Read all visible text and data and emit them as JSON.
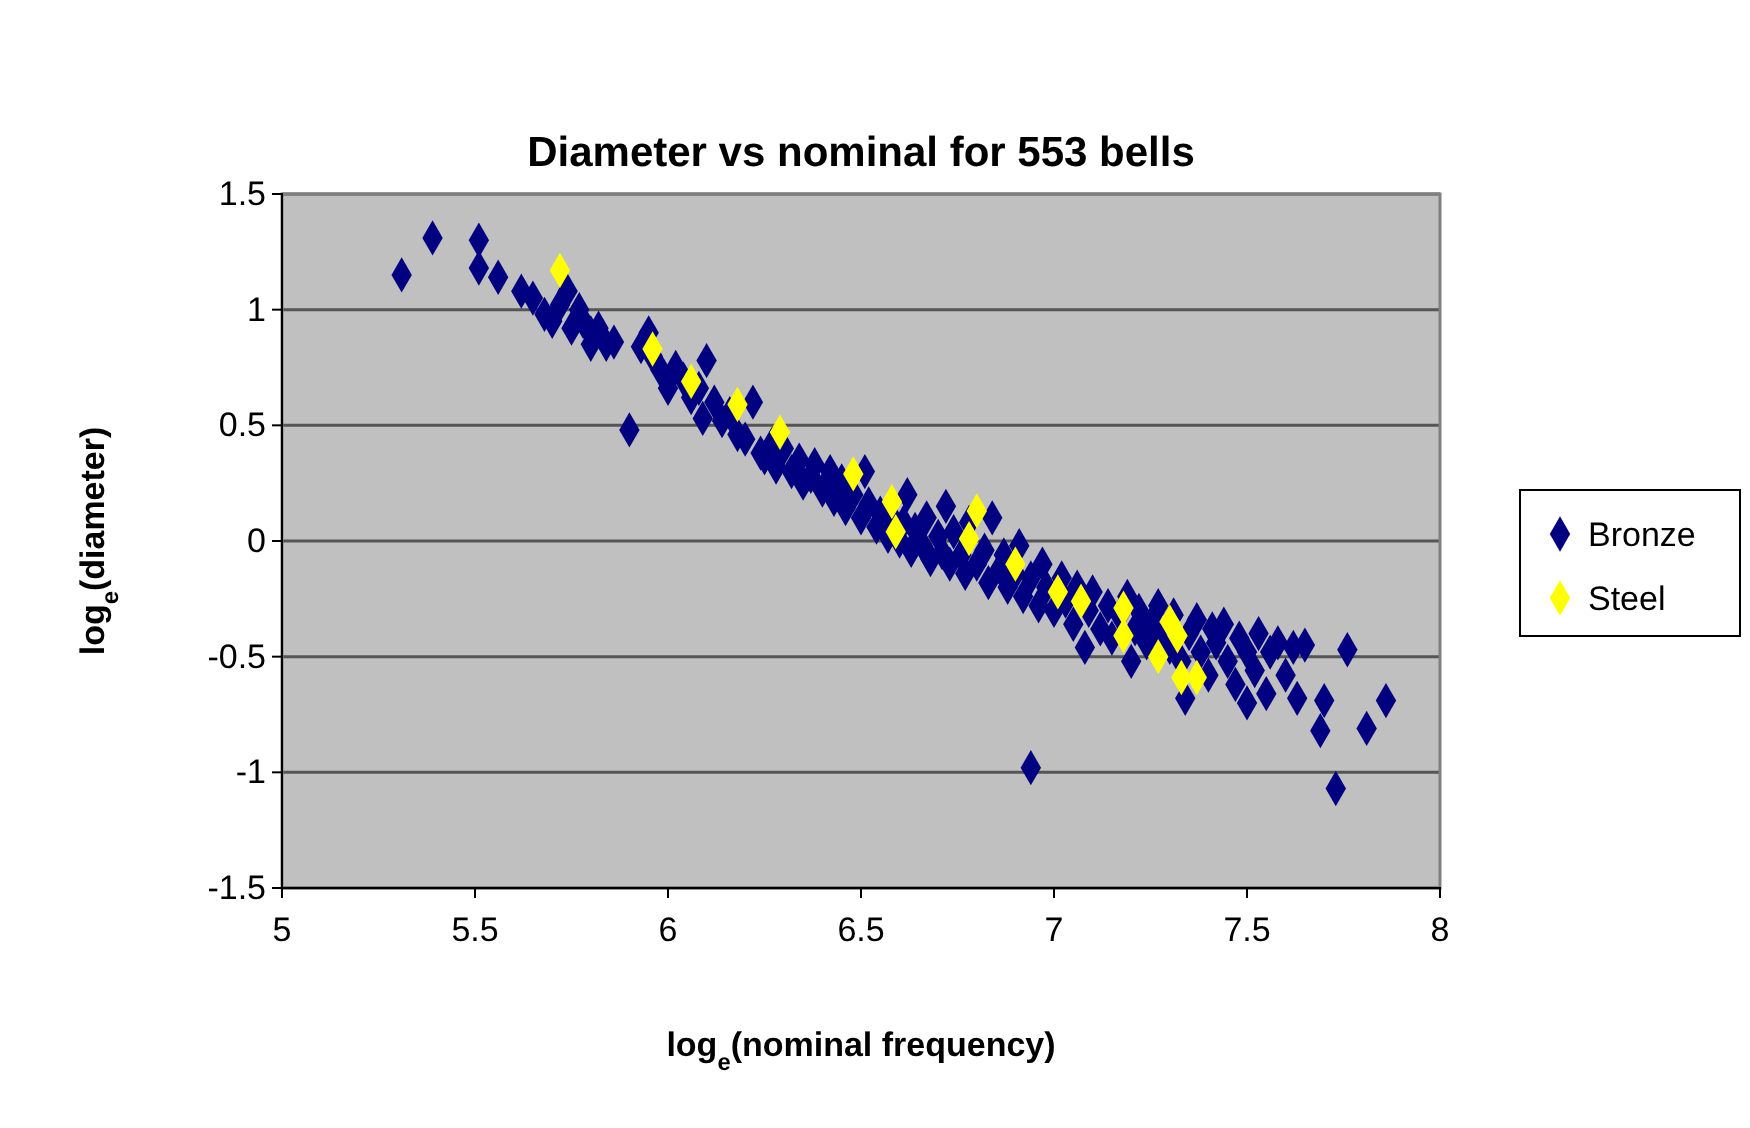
{
  "chart_data": {
    "type": "scatter",
    "title": "Diameter vs nominal for 553 bells",
    "xlabel": "log$_{e}$(nominal frequency)",
    "ylabel": "log$_{e}$(diameter)",
    "xlim": [
      5,
      8
    ],
    "xticks": [
      5,
      5.5,
      6,
      6.5,
      7,
      7.5,
      8
    ],
    "ylim": [
      -1.5,
      1.5
    ],
    "yticks": [
      -1.5,
      -1,
      -0.5,
      0,
      0.5,
      1,
      1.5
    ],
    "grid": "y",
    "legend": "right",
    "marker": "diamond",
    "series": [
      {
        "name": "Bronze",
        "color": "#000080",
        "x": [
          5.31,
          5.39,
          5.51,
          5.51,
          5.56,
          5.62,
          5.65,
          5.68,
          5.7,
          5.72,
          5.74,
          5.75,
          5.77,
          5.78,
          5.8,
          5.8,
          5.82,
          5.84,
          5.86,
          5.9,
          5.93,
          5.95,
          5.96,
          5.98,
          6.0,
          6.02,
          6.04,
          6.06,
          6.08,
          6.09,
          6.1,
          6.12,
          6.14,
          6.16,
          6.18,
          6.2,
          6.22,
          6.24,
          6.25,
          6.27,
          6.28,
          6.3,
          6.32,
          6.34,
          6.35,
          6.37,
          6.38,
          6.4,
          6.42,
          6.43,
          6.45,
          6.46,
          6.48,
          6.5,
          6.51,
          6.52,
          6.54,
          6.55,
          6.57,
          6.58,
          6.6,
          6.61,
          6.62,
          6.63,
          6.64,
          6.66,
          6.67,
          6.68,
          6.7,
          6.71,
          6.72,
          6.73,
          6.74,
          6.76,
          6.77,
          6.78,
          6.8,
          6.82,
          6.83,
          6.84,
          6.86,
          6.87,
          6.88,
          6.9,
          6.91,
          6.92,
          6.94,
          6.94,
          6.96,
          6.97,
          6.98,
          7.0,
          7.02,
          7.03,
          7.05,
          7.06,
          7.08,
          7.09,
          7.1,
          7.12,
          7.14,
          7.15,
          7.17,
          7.19,
          7.2,
          7.21,
          7.22,
          7.24,
          7.25,
          7.27,
          7.28,
          7.3,
          7.31,
          7.33,
          7.34,
          7.35,
          7.37,
          7.38,
          7.4,
          7.41,
          7.42,
          7.44,
          7.45,
          7.47,
          7.48,
          7.5,
          7.5,
          7.52,
          7.53,
          7.55,
          7.56,
          7.58,
          7.6,
          7.62,
          7.63,
          7.65,
          7.69,
          7.7,
          7.73,
          7.76,
          7.81,
          7.86
        ],
        "values": [
          1.15,
          1.31,
          1.3,
          1.18,
          1.14,
          1.08,
          1.05,
          0.98,
          0.95,
          1.02,
          1.08,
          0.92,
          1.0,
          0.95,
          0.85,
          0.9,
          0.92,
          0.85,
          0.86,
          0.48,
          0.84,
          0.9,
          0.8,
          0.74,
          0.66,
          0.75,
          0.7,
          0.62,
          0.66,
          0.53,
          0.78,
          0.6,
          0.52,
          0.55,
          0.46,
          0.44,
          0.6,
          0.38,
          0.36,
          0.42,
          0.32,
          0.4,
          0.3,
          0.35,
          0.25,
          0.28,
          0.33,
          0.22,
          0.3,
          0.18,
          0.26,
          0.14,
          0.2,
          0.1,
          0.3,
          0.16,
          0.06,
          0.12,
          0.02,
          0.1,
          0.0,
          0.08,
          0.2,
          -0.04,
          0.05,
          -0.02,
          0.1,
          -0.08,
          0.02,
          -0.05,
          0.15,
          -0.1,
          0.04,
          -0.06,
          -0.14,
          0.08,
          -0.1,
          -0.04,
          -0.18,
          0.1,
          -0.12,
          -0.06,
          -0.2,
          -0.14,
          -0.02,
          -0.24,
          -0.98,
          -0.16,
          -0.28,
          -0.1,
          -0.2,
          -0.3,
          -0.16,
          -0.26,
          -0.36,
          -0.2,
          -0.46,
          -0.3,
          -0.22,
          -0.38,
          -0.28,
          -0.42,
          -0.32,
          -0.24,
          -0.52,
          -0.38,
          -0.3,
          -0.44,
          -0.36,
          -0.28,
          -0.42,
          -0.46,
          -0.32,
          -0.52,
          -0.68,
          -0.4,
          -0.34,
          -0.48,
          -0.58,
          -0.38,
          -0.44,
          -0.36,
          -0.52,
          -0.62,
          -0.42,
          -0.7,
          -0.48,
          -0.56,
          -0.4,
          -0.66,
          -0.48,
          -0.44,
          -0.58,
          -0.46,
          -0.68,
          -0.45,
          -0.82,
          -0.69,
          -1.07,
          -0.47,
          -0.81,
          -0.69
        ]
      },
      {
        "name": "Steel",
        "color": "#ffff00",
        "x": [
          5.72,
          5.96,
          6.06,
          6.18,
          6.29,
          6.48,
          6.58,
          6.59,
          6.8,
          6.78,
          6.9,
          7.01,
          7.07,
          7.18,
          7.18,
          7.3,
          7.32,
          7.27,
          7.33,
          7.37
        ],
        "values": [
          1.17,
          0.83,
          0.69,
          0.59,
          0.47,
          0.29,
          0.17,
          0.04,
          0.13,
          0.01,
          -0.1,
          -0.22,
          -0.26,
          -0.29,
          -0.41,
          -0.35,
          -0.41,
          -0.5,
          -0.59,
          -0.59
        ]
      }
    ]
  }
}
